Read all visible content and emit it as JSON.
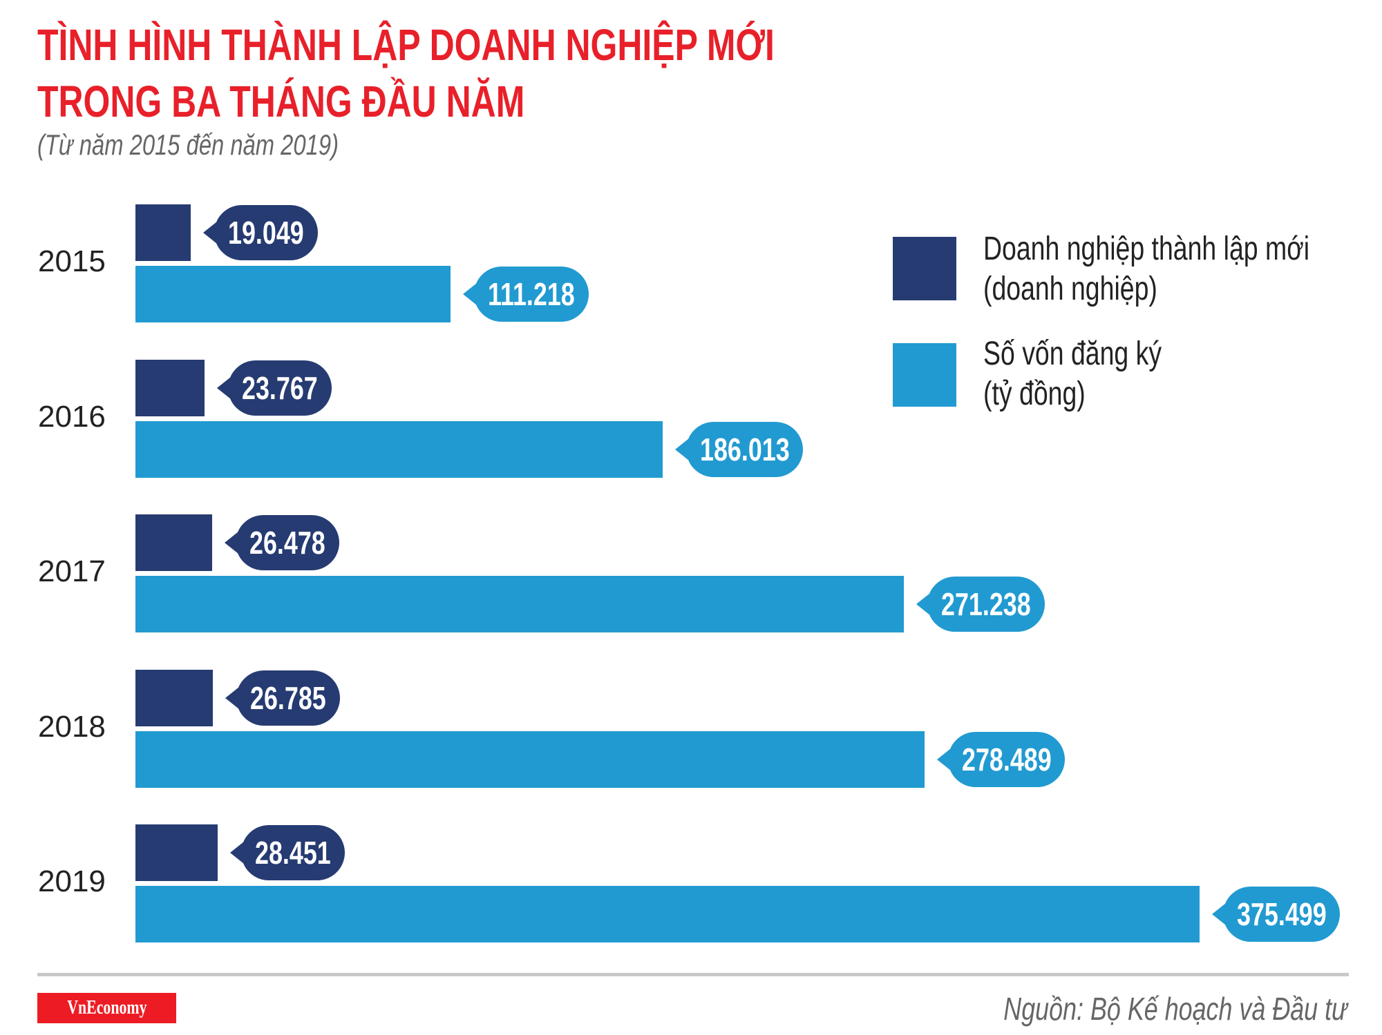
{
  "title_line1": "TÌNH HÌNH THÀNH LẬP DOANH NGHIỆP MỚI",
  "title_line2": "TRONG BA THÁNG ĐẦU NĂM",
  "subtitle": "(Từ năm 2015 đến năm 2019)",
  "chart_data": {
    "type": "bar",
    "orientation": "horizontal",
    "categories": [
      "2015",
      "2016",
      "2017",
      "2018",
      "2019"
    ],
    "series": [
      {
        "name": "Doanh nghiệp thành lập mới (doanh nghiệp)",
        "values": [
          19.049,
          23.767,
          26.478,
          26.785,
          28.451
        ],
        "labels": [
          "19.049",
          "23.767",
          "26.478",
          "26.785",
          "28.451"
        ],
        "color": "#263b72"
      },
      {
        "name": "Số vốn đăng ký (tỷ đồng)",
        "values": [
          111.218,
          186.013,
          271.238,
          278.489,
          375.499
        ],
        "labels": [
          "111.218",
          "186.013",
          "271.238",
          "278.489",
          "375.499"
        ],
        "color": "#219ad1"
      }
    ],
    "legend_position": "top-right",
    "grid": false
  },
  "legend": {
    "items": [
      {
        "line1": "Doanh nghiệp thành lập mới",
        "line2": "(doanh nghiệp)"
      },
      {
        "line1": "Số vốn đăng ký",
        "line2": "(tỷ đồng)"
      }
    ]
  },
  "footer": {
    "logo": "VnEconomy",
    "source": "Nguồn: Bộ Kế hoạch và Đầu tư"
  },
  "colors": {
    "title": "#e8202a",
    "dark": "#263b72",
    "light": "#219ad1",
    "logo_bg": "#ed1c24"
  }
}
